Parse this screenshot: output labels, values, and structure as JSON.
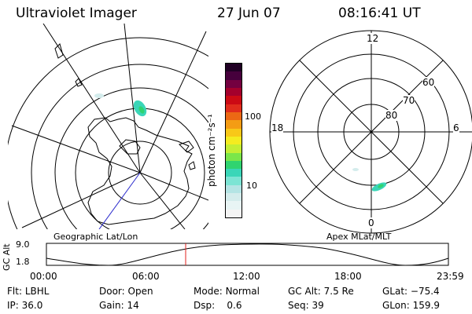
{
  "header": {
    "title": "Ultraviolet Imager",
    "date": "27 Jun 07",
    "time": "08:16:41 UT"
  },
  "left_panel": {
    "label": "Geographic Lat/Lon"
  },
  "right_panel": {
    "label": "Apex MLat/MLT",
    "lat_labels": [
      "60",
      "70",
      "80"
    ],
    "mlt_labels": [
      "12",
      "18",
      "6",
      "0"
    ]
  },
  "colorbar": {
    "unit_label": "photon cm⁻²s⁻¹",
    "ticks": [
      "100",
      "10"
    ],
    "colors": [
      "#f4f4f4",
      "#e8f4f4",
      "#d4ecec",
      "#b4e4e4",
      "#7ce4d4",
      "#3ad6b8",
      "#30d470",
      "#7ae64a",
      "#c4ee34",
      "#f4ec20",
      "#f8c818",
      "#f49c14",
      "#ec6814",
      "#e02c1c",
      "#cc0a14",
      "#a4002c",
      "#740040",
      "#46003c",
      "#200024"
    ]
  },
  "timeline": {
    "y_label": "GC Alt",
    "y_ticks": [
      "9.0",
      "1.8"
    ],
    "x_ticks": [
      "00:00",
      "06:00",
      "12:00",
      "18:00",
      "23:59"
    ],
    "marker_time": "08:16"
  },
  "status": {
    "row1": [
      {
        "k": "Flt:",
        "v": "LBHL"
      },
      {
        "k": "Door:",
        "v": "Open"
      },
      {
        "k": "Mode:",
        "v": "Normal"
      },
      {
        "k": "GC Alt:",
        "v": "7.5 Re"
      },
      {
        "k": "GLat:",
        "v": "−75.4"
      }
    ],
    "row2": [
      {
        "k": "IP:",
        "v": "36.0"
      },
      {
        "k": "Gain:",
        "v": "14"
      },
      {
        "k": "Dsp:",
        "v": "0.6"
      },
      {
        "k": "Seq:",
        "v": "39"
      },
      {
        "k": "GLon:",
        "v": "159.9"
      }
    ]
  }
}
